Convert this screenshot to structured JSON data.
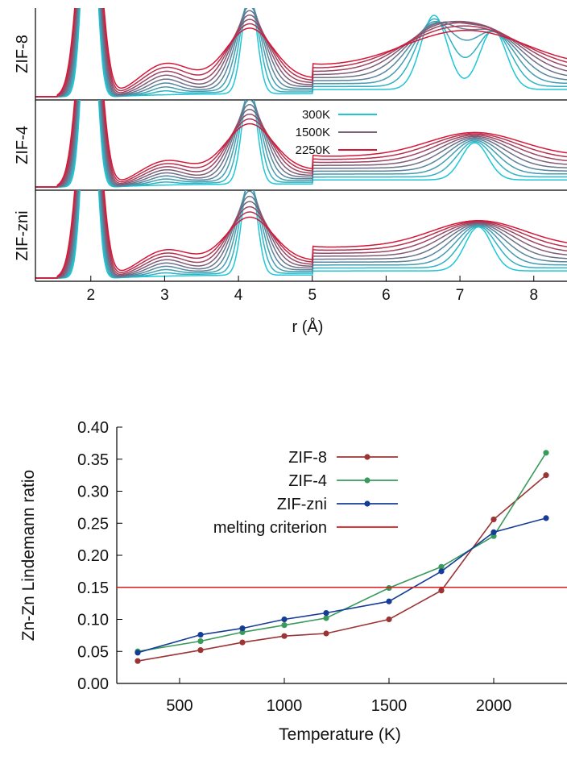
{
  "chart_data": [
    {
      "type": "line",
      "xlabel": "r (Å)",
      "xlim": [
        1.25,
        8.45
      ],
      "x_ticks": [
        "2",
        "3",
        "4",
        "5",
        "6",
        "7",
        "8"
      ],
      "panels": [
        "ZIF-8",
        "ZIF-4",
        "ZIF-zni"
      ],
      "legend": {
        "placement": "inside-middle-panel-center",
        "entries": [
          "300K",
          "1500K",
          "2250K"
        ]
      },
      "colors": {
        "300K": "#1ec6d6",
        "1500K": "#7a607a",
        "2250K": "#d61838"
      },
      "temperatures_K": [
        300,
        600,
        800,
        1000,
        1200,
        1500,
        1750,
        2000,
        2250
      ],
      "series": [
        {
          "panel": "ZIF-8",
          "features": [
            {
              "r": 1.98,
              "height_300K": 1.0,
              "height_2250K": 1.0,
              "note": "first peak (truncated)"
            },
            {
              "r": 3.0,
              "height_300K": 0.0,
              "height_2250K": 0.28
            },
            {
              "r": 4.15,
              "height_300K": 1.0,
              "height_2250K": 0.52
            },
            {
              "r": 6.65,
              "height_300K": 0.92,
              "height_2250K": 0.25
            },
            {
              "r": 7.45,
              "height_300K": 0.74,
              "height_2250K": 0.28
            }
          ]
        },
        {
          "panel": "ZIF-4",
          "features": [
            {
              "r": 1.98,
              "height_300K": 1.0,
              "height_2250K": 1.0,
              "note": "first peak (truncated)"
            },
            {
              "r": 3.0,
              "height_300K": 0.0,
              "height_2250K": 0.2
            },
            {
              "r": 4.15,
              "height_300K": 1.0,
              "height_2250K": 0.48
            },
            {
              "r": 7.2,
              "height_300K": 0.47,
              "height_2250K": 0.3
            }
          ]
        },
        {
          "panel": "ZIF-zni",
          "features": [
            {
              "r": 1.98,
              "height_300K": 1.0,
              "height_2250K": 1.0,
              "note": "first peak (truncated)"
            },
            {
              "r": 3.0,
              "height_300K": 0.0,
              "height_2250K": 0.22
            },
            {
              "r": 4.15,
              "height_300K": 1.0,
              "height_2250K": 0.45
            },
            {
              "r": 7.25,
              "height_300K": 0.55,
              "height_2250K": 0.33
            }
          ]
        }
      ]
    },
    {
      "type": "line",
      "xlabel": "Temperature (K)",
      "ylabel": "Zn-Zn Lindemann ratio",
      "xlim": [
        200,
        2350
      ],
      "ylim": [
        0.0,
        0.4
      ],
      "x_ticks": [
        "500",
        "1000",
        "1500",
        "2000"
      ],
      "y_ticks": [
        "0.00",
        "0.05",
        "0.10",
        "0.15",
        "0.20",
        "0.25",
        "0.30",
        "0.35",
        "0.40"
      ],
      "legend": {
        "placement": "top-right"
      },
      "series": [
        {
          "name": "ZIF-8",
          "color": "#9b3434",
          "x": [
            300,
            600,
            800,
            1000,
            1200,
            1500,
            1750,
            2000,
            2250
          ],
          "values": [
            0.035,
            0.052,
            0.064,
            0.074,
            0.078,
            0.1,
            0.145,
            0.256,
            0.325
          ]
        },
        {
          "name": "ZIF-4",
          "color": "#3a9a5c",
          "x": [
            300,
            600,
            800,
            1000,
            1200,
            1500,
            1750,
            2000,
            2250
          ],
          "values": [
            0.05,
            0.066,
            0.08,
            0.091,
            0.102,
            0.149,
            0.182,
            0.23,
            0.36
          ]
        },
        {
          "name": "ZIF-zni",
          "color": "#163d96",
          "x": [
            300,
            600,
            800,
            1000,
            1200,
            1500,
            1750,
            2000,
            2250
          ],
          "values": [
            0.048,
            0.076,
            0.086,
            0.1,
            0.11,
            0.128,
            0.175,
            0.236,
            0.258
          ]
        },
        {
          "name": "melting criterion",
          "color": "#d81a1a",
          "constant": 0.15
        }
      ]
    }
  ]
}
